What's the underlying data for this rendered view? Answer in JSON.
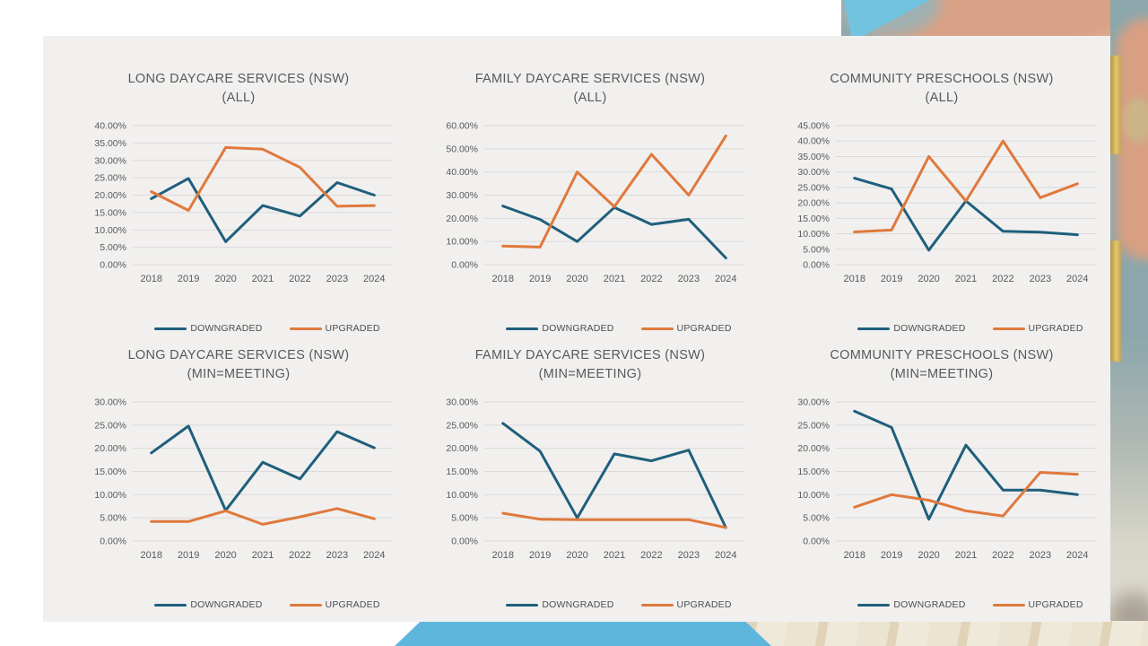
{
  "colors": {
    "downgraded": "#1F5F7C",
    "upgraded": "#E0793C",
    "gridline": "#DBDAD9",
    "axis_text": "#595959",
    "title_text": "#595959",
    "panel_bg": "#F1F0EF"
  },
  "chart_data": [
    {
      "type": "line",
      "title": "LONG DAYCARE SERVICES (NSW)",
      "subtitle": "(ALL)",
      "categories": [
        "2018",
        "2019",
        "2020",
        "2021",
        "2022",
        "2023",
        "2024"
      ],
      "series": [
        {
          "name": "DOWNGRADED",
          "values": [
            19.0,
            24.8,
            6.6,
            17.0,
            14.0,
            23.6,
            20.0
          ]
        },
        {
          "name": "UPGRADED",
          "values": [
            21.0,
            15.6,
            33.7,
            33.2,
            28.0,
            16.8,
            17.0
          ]
        }
      ],
      "ylim": [
        0,
        40
      ],
      "ytick_step": 5,
      "ytick_format": "0.00%",
      "grid": true,
      "legend_position": "bottom"
    },
    {
      "type": "line",
      "title": "FAMILY DAYCARE SERVICES (NSW)",
      "subtitle": "(ALL)",
      "categories": [
        "2018",
        "2019",
        "2020",
        "2021",
        "2022",
        "2023",
        "2024"
      ],
      "series": [
        {
          "name": "DOWNGRADED",
          "values": [
            25.3,
            19.5,
            10.0,
            24.7,
            17.4,
            19.6,
            2.9
          ]
        },
        {
          "name": "UPGRADED",
          "values": [
            8.0,
            7.6,
            40.0,
            25.0,
            47.6,
            30.0,
            55.6
          ]
        }
      ],
      "ylim": [
        0,
        60
      ],
      "ytick_step": 10,
      "ytick_format": "0.00%",
      "grid": true,
      "legend_position": "bottom"
    },
    {
      "type": "line",
      "title": "COMMUNITY PRESCHOOLS (NSW)",
      "subtitle": "(ALL)",
      "categories": [
        "2018",
        "2019",
        "2020",
        "2021",
        "2022",
        "2023",
        "2024"
      ],
      "series": [
        {
          "name": "DOWNGRADED",
          "values": [
            28.0,
            24.5,
            4.7,
            20.6,
            10.8,
            10.5,
            9.7
          ]
        },
        {
          "name": "UPGRADED",
          "values": [
            10.6,
            11.2,
            35.0,
            20.6,
            40.0,
            21.7,
            26.2
          ]
        }
      ],
      "ylim": [
        0,
        45
      ],
      "ytick_step": 5,
      "ytick_format": "0.00%",
      "grid": true,
      "legend_position": "bottom"
    },
    {
      "type": "line",
      "title": "LONG DAYCARE SERVICES (NSW)",
      "subtitle": "(MIN=MEETING)",
      "categories": [
        "2018",
        "2019",
        "2020",
        "2021",
        "2022",
        "2023",
        "2024"
      ],
      "series": [
        {
          "name": "DOWNGRADED",
          "values": [
            19.0,
            24.8,
            6.6,
            17.0,
            13.4,
            23.6,
            20.1
          ]
        },
        {
          "name": "UPGRADED",
          "values": [
            4.2,
            4.2,
            6.5,
            3.6,
            5.2,
            7.0,
            4.8
          ]
        }
      ],
      "ylim": [
        0,
        30
      ],
      "ytick_step": 5,
      "ytick_format": "0.00%",
      "grid": true,
      "legend_position": "bottom"
    },
    {
      "type": "line",
      "title": "FAMILY DAYCARE SERVICES (NSW)",
      "subtitle": "(MIN=MEETING)",
      "categories": [
        "2018",
        "2019",
        "2020",
        "2021",
        "2022",
        "2023",
        "2024"
      ],
      "series": [
        {
          "name": "DOWNGRADED",
          "values": [
            25.4,
            19.4,
            5.0,
            18.8,
            17.3,
            19.6,
            2.9
          ]
        },
        {
          "name": "UPGRADED",
          "values": [
            6.0,
            4.7,
            4.6,
            4.6,
            4.6,
            4.6,
            2.9
          ]
        }
      ],
      "ylim": [
        0,
        30
      ],
      "ytick_step": 5,
      "ytick_format": "0.00%",
      "grid": true,
      "legend_position": "bottom"
    },
    {
      "type": "line",
      "title": "COMMUNITY PRESCHOOLS (NSW)",
      "subtitle": "(MIN=MEETING)",
      "categories": [
        "2018",
        "2019",
        "2020",
        "2021",
        "2022",
        "2023",
        "2024"
      ],
      "series": [
        {
          "name": "DOWNGRADED",
          "values": [
            28.0,
            24.5,
            4.7,
            20.7,
            11.0,
            11.0,
            10.0
          ]
        },
        {
          "name": "UPGRADED",
          "values": [
            7.3,
            10.0,
            8.8,
            6.5,
            5.4,
            14.8,
            14.4
          ]
        }
      ],
      "ylim": [
        0,
        30
      ],
      "ytick_step": 5,
      "ytick_format": "0.00%",
      "grid": true,
      "legend_position": "bottom"
    }
  ]
}
